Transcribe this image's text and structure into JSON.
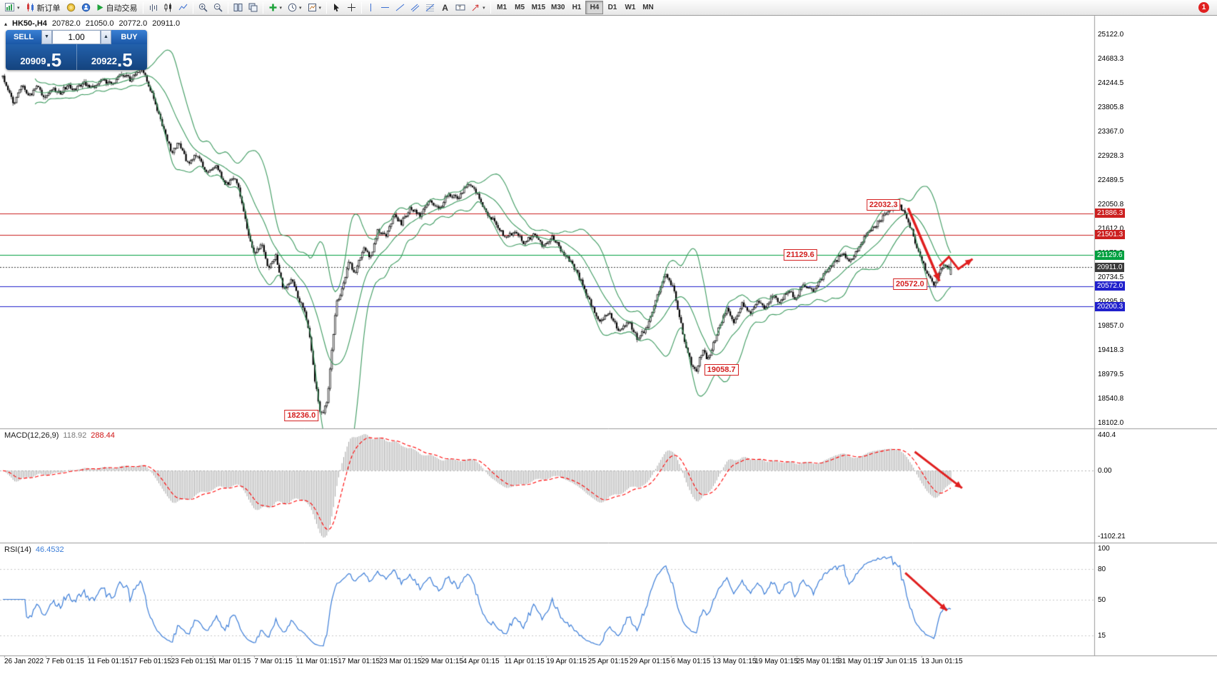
{
  "toolbar": {
    "new_order_label": "新订单",
    "autotrade_label": "自动交易",
    "timeframes": [
      "M1",
      "M5",
      "M15",
      "M30",
      "H1",
      "H4",
      "D1",
      "W1",
      "MN"
    ],
    "active_timeframe": "H4",
    "notification_count": "1",
    "icons": [
      "new-chart",
      "new-order",
      "market-watch",
      "navigator",
      "auto-trading",
      "chart-bars",
      "chart-candlesticks",
      "chart-line",
      "zoom-in",
      "zoom-out",
      "tile-windows",
      "cascade-windows",
      "indicators-list",
      "periods",
      "templates",
      "cursor",
      "crosshair",
      "vertical-line",
      "horizontal-line",
      "trendline",
      "equidistant-channel",
      "fibonacci-retracement",
      "text",
      "text-label",
      "arrow-objects",
      "notifications"
    ]
  },
  "chart_header": {
    "symbol_period": "HK50-,H4",
    "open": "20782.0",
    "high": "21050.0",
    "low": "20772.0",
    "close": "20911.0"
  },
  "trade_panel": {
    "sell_label": "SELL",
    "buy_label": "BUY",
    "volume": "1.00",
    "sell_price_small": "20909",
    "sell_price_large": ".5",
    "buy_price_small": "20922",
    "buy_price_large": ".5"
  },
  "chart_data": {
    "type": "candlestick",
    "symbol": "HK50-",
    "timeframe": "H4",
    "candles_count": 560,
    "last_candle": {
      "open": 20782.0,
      "high": 21050.0,
      "low": 20772.0,
      "close": 20911.0
    },
    "price_path": [
      [
        0,
        24350
      ],
      [
        0.006,
        24100
      ],
      [
        0.012,
        23850
      ],
      [
        0.02,
        24200
      ],
      [
        0.028,
        24000
      ],
      [
        0.036,
        24180
      ],
      [
        0.044,
        23950
      ],
      [
        0.052,
        24150
      ],
      [
        0.06,
        24050
      ],
      [
        0.068,
        24200
      ],
      [
        0.076,
        24100
      ],
      [
        0.085,
        24250
      ],
      [
        0.095,
        24150
      ],
      [
        0.105,
        24300
      ],
      [
        0.115,
        24200
      ],
      [
        0.125,
        24400
      ],
      [
        0.135,
        24300
      ],
      [
        0.145,
        24500
      ],
      [
        0.152,
        24300
      ],
      [
        0.16,
        23900
      ],
      [
        0.17,
        23400
      ],
      [
        0.178,
        23000
      ],
      [
        0.185,
        23150
      ],
      [
        0.195,
        22800
      ],
      [
        0.205,
        22950
      ],
      [
        0.215,
        22600
      ],
      [
        0.225,
        22750
      ],
      [
        0.235,
        22400
      ],
      [
        0.245,
        22550
      ],
      [
        0.252,
        22100
      ],
      [
        0.259,
        21500
      ],
      [
        0.266,
        21150
      ],
      [
        0.273,
        21350
      ],
      [
        0.28,
        20900
      ],
      [
        0.288,
        21100
      ],
      [
        0.296,
        20500
      ],
      [
        0.304,
        20700
      ],
      [
        0.312,
        20350
      ],
      [
        0.318,
        20150
      ],
      [
        0.324,
        19600
      ],
      [
        0.329,
        18900
      ],
      [
        0.334,
        18350
      ],
      [
        0.338,
        18236
      ],
      [
        0.343,
        18600
      ],
      [
        0.348,
        19600
      ],
      [
        0.352,
        20250
      ],
      [
        0.358,
        20500
      ],
      [
        0.365,
        21000
      ],
      [
        0.372,
        20800
      ],
      [
        0.38,
        21250
      ],
      [
        0.388,
        21100
      ],
      [
        0.396,
        21600
      ],
      [
        0.404,
        21450
      ],
      [
        0.412,
        21850
      ],
      [
        0.42,
        21700
      ],
      [
        0.43,
        22000
      ],
      [
        0.44,
        21850
      ],
      [
        0.45,
        22100
      ],
      [
        0.46,
        21950
      ],
      [
        0.47,
        22250
      ],
      [
        0.48,
        22150
      ],
      [
        0.49,
        22450
      ],
      [
        0.5,
        22250
      ],
      [
        0.51,
        21900
      ],
      [
        0.52,
        21700
      ],
      [
        0.53,
        21450
      ],
      [
        0.54,
        21550
      ],
      [
        0.55,
        21350
      ],
      [
        0.56,
        21500
      ],
      [
        0.57,
        21300
      ],
      [
        0.58,
        21450
      ],
      [
        0.59,
        21200
      ],
      [
        0.6,
        21000
      ],
      [
        0.61,
        20650
      ],
      [
        0.62,
        20250
      ],
      [
        0.63,
        19900
      ],
      [
        0.64,
        20100
      ],
      [
        0.65,
        19750
      ],
      [
        0.66,
        19950
      ],
      [
        0.67,
        19600
      ],
      [
        0.68,
        19850
      ],
      [
        0.69,
        20400
      ],
      [
        0.7,
        20800
      ],
      [
        0.707,
        20550
      ],
      [
        0.714,
        20000
      ],
      [
        0.72,
        19500
      ],
      [
        0.727,
        19120
      ],
      [
        0.732,
        19058
      ],
      [
        0.738,
        19400
      ],
      [
        0.744,
        19250
      ],
      [
        0.75,
        19550
      ],
      [
        0.757,
        19900
      ],
      [
        0.764,
        20150
      ],
      [
        0.772,
        19900
      ],
      [
        0.78,
        20250
      ],
      [
        0.788,
        20050
      ],
      [
        0.796,
        20300
      ],
      [
        0.804,
        20150
      ],
      [
        0.812,
        20400
      ],
      [
        0.82,
        20250
      ],
      [
        0.828,
        20500
      ],
      [
        0.836,
        20350
      ],
      [
        0.845,
        20600
      ],
      [
        0.855,
        20450
      ],
      [
        0.865,
        20750
      ],
      [
        0.875,
        20950
      ],
      [
        0.885,
        21150
      ],
      [
        0.895,
        21000
      ],
      [
        0.905,
        21350
      ],
      [
        0.915,
        21550
      ],
      [
        0.925,
        21750
      ],
      [
        0.935,
        21950
      ],
      [
        0.945,
        22032
      ],
      [
        0.952,
        21900
      ],
      [
        0.96,
        21500
      ],
      [
        0.968,
        21100
      ],
      [
        0.976,
        20750
      ],
      [
        0.982,
        20572
      ],
      [
        0.988,
        20850
      ],
      [
        0.994,
        20950
      ],
      [
        1,
        20911
      ]
    ],
    "y_axis_labels": [
      "25122.0",
      "24683.3",
      "24244.5",
      "23805.8",
      "23367.0",
      "22928.3",
      "22489.5",
      "22050.8",
      "21612.0",
      "21173.3",
      "20734.5",
      "20295.8",
      "19857.0",
      "19418.3",
      "18979.5",
      "18540.8",
      "18102.0"
    ],
    "x_axis_labels": [
      "26 Jan 2022",
      "7 Feb 01:15",
      "11 Feb 01:15",
      "17 Feb 01:15",
      "23 Feb 01:15",
      "1 Mar 01:15",
      "7 Mar 01:15",
      "11 Mar 01:15",
      "17 Mar 01:15",
      "23 Mar 01:15",
      "29 Mar 01:15",
      "4 Apr 01:15",
      "11 Apr 01:15",
      "19 Apr 01:15",
      "25 Apr 01:15",
      "29 Apr 01:15",
      "6 May 01:15",
      "13 May 01:15",
      "19 May 01:15",
      "25 May 01:15",
      "31 May 01:15",
      "7 Jun 01:15",
      "13 Jun 01:15"
    ],
    "hlines": [
      {
        "price": 21886.3,
        "tag": "21886.3",
        "color": "#cc2020",
        "style": "solid"
      },
      {
        "price": 21501.3,
        "tag": "21501.3",
        "color": "#cc2020",
        "style": "solid"
      },
      {
        "price": 21129.6,
        "tag": "21129.6",
        "color": "#00a040",
        "style": "solid"
      },
      {
        "price": 20911.0,
        "tag": "20911.0",
        "color": "#3a3a3a",
        "style": "dotted",
        "role": "last-price"
      },
      {
        "price": 20572.0,
        "tag": "20572.0",
        "color": "#2020cc",
        "style": "solid"
      },
      {
        "price": 20200.3,
        "tag": "20200.3",
        "color": "#2020cc",
        "style": "solid"
      }
    ],
    "callouts": [
      {
        "text": "22032.3",
        "t": 0.95,
        "price": 22032.3,
        "align": "left"
      },
      {
        "text": "21129.6",
        "t": 0.862,
        "price": 21129.6,
        "align": "left"
      },
      {
        "text": "20572.0",
        "t": 0.978,
        "price": 20600,
        "align": "left"
      },
      {
        "text": "19058.7",
        "t": 0.737,
        "price": 19058.7,
        "align": "right"
      },
      {
        "text": "18236.0",
        "t": 0.336,
        "price": 18236.0,
        "align": "left"
      }
    ],
    "arrows": [
      {
        "panel": "main",
        "type": "line",
        "from": [
          0.955,
          21980
        ],
        "to": [
          0.988,
          20660
        ]
      },
      {
        "panel": "main",
        "type": "zigzag",
        "points": [
          [
            0.988,
            20930
          ],
          [
            0.998,
            21100
          ],
          [
            1.008,
            20880
          ],
          [
            1.023,
            21060
          ]
        ]
      },
      {
        "panel": "macd",
        "type": "line",
        "from": [
          0.962,
          0.2
        ],
        "to": [
          1.012,
          0.52
        ]
      },
      {
        "panel": "rsi",
        "type": "line",
        "from": [
          0.952,
          76
        ],
        "to": [
          0.996,
          39
        ]
      }
    ],
    "marker": {
      "t": 0.148,
      "price": 24640,
      "shape": "down-triangle"
    },
    "indicators": {
      "bollinger": {
        "period": 20,
        "deviation": 2,
        "color": "#3c9a5f"
      },
      "macd": {
        "label": "MACD(12,26,9)",
        "value_main": "118.92",
        "value_signal": "288.44",
        "axis_labels": [
          "440.4",
          "0.00",
          "-1102.21"
        ],
        "histogram_color": "#999999",
        "signal_color": "#ff0000"
      },
      "rsi": {
        "label": "RSI(14)",
        "value": "46.4532",
        "axis_labels": [
          "100",
          "80",
          "50",
          "15"
        ],
        "levels": [
          80,
          50,
          15
        ],
        "color": "#3b7dd8",
        "range": [
          0,
          100
        ]
      }
    }
  }
}
